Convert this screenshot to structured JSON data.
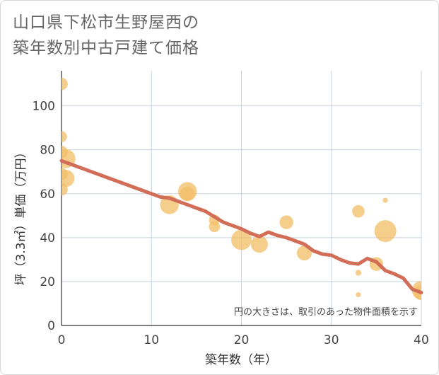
{
  "title_line1": "山口県下松市生野屋西の",
  "title_line2": "築年数別中古戸建て価格",
  "chart_data": {
    "type": "scatter",
    "title": "山口県下松市生野屋西の築年数別中古戸建て価格",
    "xlabel": "築年数（年）",
    "ylabel": "坪（3.3㎡）単価（万円）",
    "xlim": [
      0,
      40
    ],
    "ylim": [
      0,
      116
    ],
    "xticks": [
      0,
      10,
      20,
      30,
      40
    ],
    "yticks": [
      0,
      20,
      40,
      60,
      80,
      100
    ],
    "grid": true,
    "note": "円の大きさは、取引のあった物件面積を示す",
    "bubble_color": "#f3c06a",
    "line_color": "#d26e58",
    "points": [
      {
        "x": 0,
        "y": 110,
        "size": 2
      },
      {
        "x": 0,
        "y": 86,
        "size": 1.5
      },
      {
        "x": 0,
        "y": 79,
        "size": 2
      },
      {
        "x": 0.5,
        "y": 76,
        "size": 5
      },
      {
        "x": 0,
        "y": 69,
        "size": 2
      },
      {
        "x": 0.5,
        "y": 67,
        "size": 4
      },
      {
        "x": 0,
        "y": 62,
        "size": 2
      },
      {
        "x": 12,
        "y": 55,
        "size": 5
      },
      {
        "x": 14,
        "y": 61,
        "size": 5
      },
      {
        "x": 14,
        "y": 60,
        "size": 3
      },
      {
        "x": 17,
        "y": 48,
        "size": 1.5
      },
      {
        "x": 17,
        "y": 45,
        "size": 1.5
      },
      {
        "x": 20,
        "y": 39,
        "size": 6
      },
      {
        "x": 22,
        "y": 37,
        "size": 4
      },
      {
        "x": 25,
        "y": 47,
        "size": 2.5
      },
      {
        "x": 27,
        "y": 33,
        "size": 3
      },
      {
        "x": 33,
        "y": 52,
        "size": 2
      },
      {
        "x": 33,
        "y": 24,
        "size": 0.3
      },
      {
        "x": 33,
        "y": 14,
        "size": 0.2
      },
      {
        "x": 35,
        "y": 28,
        "size": 2.5
      },
      {
        "x": 36,
        "y": 43,
        "size": 7
      },
      {
        "x": 36,
        "y": 57,
        "size": 0.2
      },
      {
        "x": 40,
        "y": 16,
        "size": 5
      },
      {
        "x": 40,
        "y": 15,
        "size": 3
      }
    ],
    "trend_line": {
      "x": [
        0,
        2,
        4,
        6,
        8,
        9,
        10,
        11,
        12,
        13,
        14,
        15,
        16,
        17,
        18,
        19,
        20,
        21,
        22,
        23,
        24,
        25,
        26,
        27,
        28,
        29,
        30,
        31,
        32,
        33,
        34,
        35,
        36,
        37,
        38,
        39,
        40
      ],
      "y": [
        75,
        72,
        69,
        66,
        63,
        61.5,
        60,
        58.5,
        58,
        56.5,
        55,
        53.5,
        52,
        49.5,
        47,
        45.5,
        44,
        42,
        40.5,
        42.5,
        41,
        40,
        38.5,
        37,
        34,
        32.5,
        32,
        30,
        28.5,
        28,
        30.5,
        29,
        25,
        23.5,
        21.5,
        16.5,
        15
      ]
    }
  }
}
